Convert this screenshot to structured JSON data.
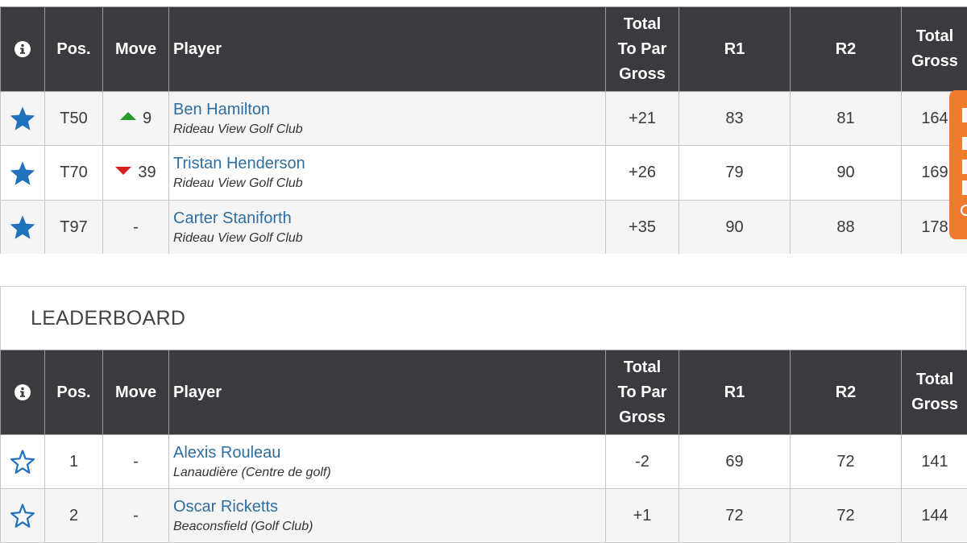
{
  "headers": {
    "info": "i",
    "pos": "Pos.",
    "move": "Move",
    "player": "Player",
    "to_par_1": "Total",
    "to_par_2": "To Par",
    "to_par_3": "Gross",
    "r1": "R1",
    "r2": "R2",
    "gross_1": "Total",
    "gross_2": "Gross"
  },
  "favorites": {
    "rows": [
      {
        "pos": "T50",
        "move_dir": "up",
        "move": "9",
        "name": "Ben Hamilton",
        "club": "Rideau View Golf Club",
        "to_par": "+21",
        "r1": "83",
        "r2": "81",
        "total": "164",
        "starred": true
      },
      {
        "pos": "T70",
        "move_dir": "down",
        "move": "39",
        "name": "Tristan Henderson",
        "club": "Rideau View Golf Club",
        "to_par": "+26",
        "r1": "79",
        "r2": "90",
        "total": "169",
        "starred": true
      },
      {
        "pos": "T97",
        "move_dir": "none",
        "move": "-",
        "name": "Carter Staniforth",
        "club": "Rideau View Golf Club",
        "to_par": "+35",
        "r1": "90",
        "r2": "88",
        "total": "178",
        "starred": true
      }
    ]
  },
  "leaderboard": {
    "title": "LEADERBOARD",
    "rows": [
      {
        "pos": "1",
        "move_dir": "none",
        "move": "-",
        "name": "Alexis Rouleau",
        "club": "Lanaudière (Centre de golf)",
        "to_par": "-2",
        "r1": "69",
        "r2": "72",
        "total": "141",
        "starred": false
      },
      {
        "pos": "2",
        "move_dir": "none",
        "move": "-",
        "name": "Oscar Ricketts",
        "club": "Beaconsfield (Golf Club)",
        "to_par": "+1",
        "r1": "72",
        "r2": "72",
        "total": "144",
        "starred": false
      }
    ]
  },
  "colors": {
    "header_bg": "#3b3b3f",
    "star_blue": "#1f72bb",
    "link_blue": "#2f6e9e",
    "under_par_red": "#cc1f1f",
    "even_green": "#2a9a2a",
    "side_tab_orange": "#f07a2e"
  },
  "icons": {
    "info": "info-circle-icon",
    "star_filled": "star-filled-icon",
    "star_outline": "star-outline-icon",
    "move_up": "triangle-up-icon",
    "move_down": "triangle-down-icon"
  }
}
